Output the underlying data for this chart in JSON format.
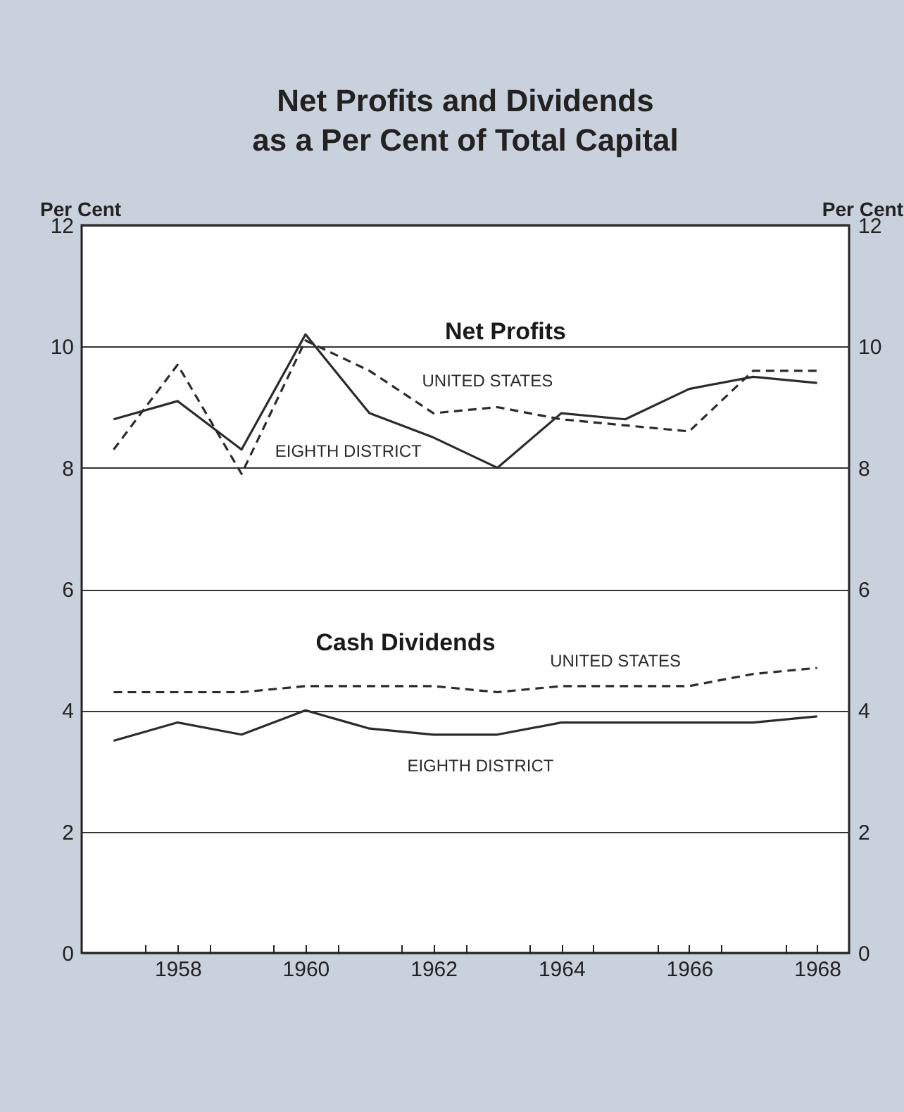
{
  "chart_data": {
    "type": "line",
    "title": "Net Profits and Dividends\nas a Per Cent of Total Capital",
    "ylabel": "Per Cent",
    "y2label": "Per Cent",
    "annotations": [
      "Net Profits",
      "Cash Dividends"
    ],
    "x": [
      1957,
      1958,
      1959,
      1960,
      1961,
      1962,
      1963,
      1964,
      1965,
      1966,
      1967,
      1968
    ],
    "series": [
      {
        "name": "UNITED STATES",
        "color": "#2b2b2b",
        "line_style": "dashed",
        "values": [
          8.3,
          9.7,
          7.9,
          10.1,
          9.6,
          8.9,
          9.0,
          8.8,
          8.7,
          8.6,
          9.6,
          9.6
        ]
      },
      {
        "name": "EIGHTH DISTRICT",
        "color": "#2b2b2b",
        "line_style": "solid",
        "values": [
          8.8,
          9.1,
          8.3,
          10.2,
          8.9,
          8.5,
          8.0,
          8.9,
          8.8,
          9.3,
          9.5,
          9.4
        ]
      },
      {
        "name": "UNITED STATES",
        "color": "#2b2b2b",
        "line_style": "dashed",
        "values": [
          4.3,
          4.3,
          4.3,
          4.4,
          4.4,
          4.4,
          4.3,
          4.4,
          4.4,
          4.4,
          4.6,
          4.7
        ]
      },
      {
        "name": "EIGHTH DISTRICT",
        "color": "#2b2b2b",
        "line_style": "solid",
        "values": [
          3.5,
          3.8,
          3.6,
          4.0,
          3.7,
          3.6,
          3.6,
          3.8,
          3.8,
          3.8,
          3.8,
          3.9
        ]
      }
    ],
    "xlim": [
      1956.5,
      1968.5
    ],
    "xticks": [
      {
        "value": 1957.5,
        "label": null
      },
      1958,
      {
        "value": 1958.5,
        "label": null
      },
      {
        "value": 1959.5,
        "label": null
      },
      1960,
      {
        "value": 1960.5,
        "label": null
      },
      {
        "value": 1961.5,
        "label": null
      },
      1962,
      {
        "value": 1962.5,
        "label": null
      },
      {
        "value": 1963.5,
        "label": null
      },
      1964,
      {
        "value": 1964.5,
        "label": null
      },
      {
        "value": 1965.5,
        "label": null
      },
      1966,
      {
        "value": 1966.5,
        "label": null
      },
      {
        "value": 1967.5,
        "label": null
      },
      1968
    ],
    "ylim": [
      0,
      12
    ],
    "yticks": [
      0,
      2,
      4,
      6,
      8,
      10,
      12
    ],
    "y2lim": [
      0,
      12
    ],
    "y2ticks": [
      0,
      2,
      4,
      6,
      8,
      10,
      12
    ],
    "grid": "y"
  }
}
